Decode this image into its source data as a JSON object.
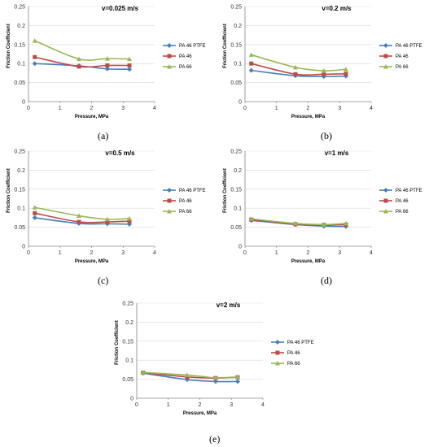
{
  "colors": {
    "ptfe": "#4a7ebb",
    "pa46": "#be4b48",
    "pa66": "#98b954",
    "axis": "#868686",
    "grid": "#d9d9d9"
  },
  "chart_data": [
    {
      "type": "line",
      "caption": "(a)",
      "title": "v=0.025 m/s",
      "xlabel": "Pressure, MPa",
      "ylabel": "Friction Coefficient",
      "xlim": [
        0,
        4
      ],
      "ylim": [
        0,
        0.25
      ],
      "xticks": [
        "0",
        "1",
        "2",
        "3",
        "4"
      ],
      "yticks": [
        "0",
        "0.05",
        "0.1",
        "0.15",
        "0.2",
        "0.25"
      ],
      "x": [
        0.2,
        1.6,
        2.5,
        3.2
      ],
      "series": [
        {
          "name": "PA 46 PTFE",
          "values": [
            0.1,
            0.094,
            0.086,
            0.085
          ]
        },
        {
          "name": "PA 46",
          "values": [
            0.117,
            0.092,
            0.095,
            0.095
          ]
        },
        {
          "name": "PA 66",
          "values": [
            0.16,
            0.112,
            0.113,
            0.112
          ]
        }
      ],
      "grid": "horizontal",
      "legend": "right"
    },
    {
      "type": "line",
      "caption": "(b)",
      "title": "v=0.2 m/s",
      "xlabel": "Pressure, MPa",
      "ylabel": "Friction Coefficient",
      "xlim": [
        0,
        4
      ],
      "ylim": [
        0,
        0.25
      ],
      "xticks": [
        "0",
        "1",
        "2",
        "3",
        "4"
      ],
      "yticks": [
        "0",
        "0.05",
        "0.1",
        "0.15",
        "0.2",
        "0.25"
      ],
      "x": [
        0.2,
        1.6,
        2.5,
        3.2
      ],
      "series": [
        {
          "name": "PA 46 PTFE",
          "values": [
            0.082,
            0.068,
            0.066,
            0.067
          ]
        },
        {
          "name": "PA 46",
          "values": [
            0.1,
            0.072,
            0.072,
            0.073
          ]
        },
        {
          "name": "PA 66",
          "values": [
            0.123,
            0.09,
            0.081,
            0.085
          ]
        }
      ],
      "grid": "horizontal",
      "legend": "right"
    },
    {
      "type": "line",
      "caption": "(c)",
      "title": "v=0.5 m/s",
      "xlabel": "Pressure, MPa",
      "ylabel": "Friction Coefficient",
      "xlim": [
        0,
        4
      ],
      "ylim": [
        0,
        0.25
      ],
      "xticks": [
        "0",
        "1",
        "2",
        "3",
        "4"
      ],
      "yticks": [
        "0",
        "0.05",
        "0.1",
        "0.15",
        "0.2",
        "0.25"
      ],
      "x": [
        0.2,
        1.6,
        2.5,
        3.2
      ],
      "series": [
        {
          "name": "PA 46 PTFE",
          "values": [
            0.075,
            0.06,
            0.059,
            0.058
          ]
        },
        {
          "name": "PA 46",
          "values": [
            0.087,
            0.064,
            0.064,
            0.066
          ]
        },
        {
          "name": "PA 66",
          "values": [
            0.102,
            0.08,
            0.071,
            0.073
          ]
        }
      ],
      "grid": "horizontal",
      "legend": "right"
    },
    {
      "type": "line",
      "caption": "(d)",
      "title": "v=1 m/s",
      "xlabel": "Pressure, MPa",
      "ylabel": "Friction Coefficient",
      "xlim": [
        0,
        4
      ],
      "ylim": [
        0,
        0.25
      ],
      "xticks": [
        "0",
        "1",
        "2",
        "3",
        "4"
      ],
      "yticks": [
        "0",
        "0.05",
        "0.1",
        "0.15",
        "0.2",
        "0.25"
      ],
      "x": [
        0.2,
        1.6,
        2.5,
        3.2
      ],
      "series": [
        {
          "name": "PA 46 PTFE",
          "values": [
            0.068,
            0.057,
            0.053,
            0.052
          ]
        },
        {
          "name": "PA 46",
          "values": [
            0.07,
            0.058,
            0.056,
            0.057
          ]
        },
        {
          "name": "PA 66",
          "values": [
            0.072,
            0.06,
            0.057,
            0.06
          ]
        }
      ],
      "grid": "horizontal",
      "legend": "right"
    },
    {
      "type": "line",
      "caption": "(e)",
      "title": "v=2 m/s",
      "xlabel": "Pressure, MPa",
      "ylabel": "Friction Coefficient",
      "xlim": [
        0,
        4
      ],
      "ylim": [
        0,
        0.25
      ],
      "xticks": [
        "0",
        "1",
        "2",
        "3",
        "4"
      ],
      "yticks": [
        "0",
        "0.05",
        "0.1",
        "0.15",
        "0.2",
        "0.25"
      ],
      "x": [
        0.2,
        1.6,
        2.5,
        3.2
      ],
      "series": [
        {
          "name": "PA 46 PTFE",
          "values": [
            0.066,
            0.049,
            0.044,
            0.044
          ]
        },
        {
          "name": "PA 46",
          "values": [
            0.067,
            0.056,
            0.053,
            0.055
          ]
        },
        {
          "name": "PA 66",
          "values": [
            0.068,
            0.061,
            0.054,
            0.056
          ]
        }
      ],
      "grid": "horizontal",
      "legend": "right"
    }
  ]
}
